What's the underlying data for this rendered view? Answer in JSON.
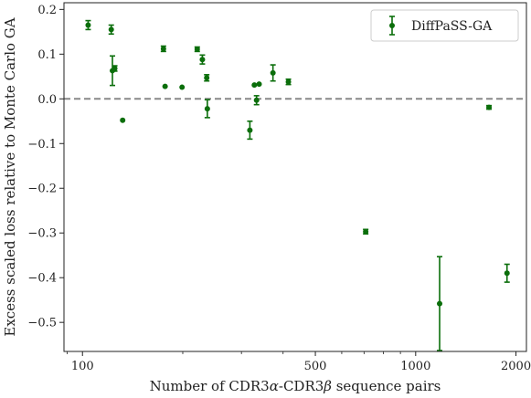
{
  "chart_data": {
    "type": "scatter",
    "xlabel_parts": [
      "Number of CDR3",
      "α",
      "-CDR3",
      "β",
      " sequence pairs"
    ],
    "ylabel": "Excess scaled loss relative to Monte Carlo GA",
    "xscale": "log",
    "xlim": [
      88,
      2150
    ],
    "ylim": [
      -0.565,
      0.215
    ],
    "xticks": [
      100,
      500,
      1000,
      2000
    ],
    "xtick_labels": [
      "100",
      "500",
      "1000",
      "2000"
    ],
    "yticks": [
      0.2,
      0.1,
      0.0,
      -0.1,
      -0.2,
      -0.3,
      -0.4,
      -0.5
    ],
    "ytick_labels": [
      "0.2",
      "0.1",
      "0.0",
      "−0.1",
      "−0.2",
      "−0.3",
      "−0.4",
      "−0.5"
    ],
    "reference_line": {
      "y": 0.0,
      "style": "dashed",
      "color": "#888888"
    },
    "legend": {
      "position": "top-right",
      "entries": [
        "DiffPaSS-GA"
      ]
    },
    "series": [
      {
        "name": "DiffPaSS-GA",
        "color": "#0b6e0b",
        "points": [
          {
            "x": 104,
            "y": 0.165,
            "err": 0.01
          },
          {
            "x": 122,
            "y": 0.155,
            "err": 0.01
          },
          {
            "x": 123,
            "y": 0.063,
            "err": 0.033
          },
          {
            "x": 125,
            "y": 0.068,
            "err": 0.006
          },
          {
            "x": 132,
            "y": -0.048,
            "err": 0.0
          },
          {
            "x": 175,
            "y": 0.112,
            "err": 0.006
          },
          {
            "x": 177,
            "y": 0.028,
            "err": 0.0
          },
          {
            "x": 199,
            "y": 0.026,
            "err": 0.0
          },
          {
            "x": 221,
            "y": 0.111,
            "err": 0.005
          },
          {
            "x": 229,
            "y": 0.088,
            "err": 0.01
          },
          {
            "x": 236,
            "y": 0.047,
            "err": 0.007
          },
          {
            "x": 237,
            "y": -0.022,
            "err": 0.02
          },
          {
            "x": 318,
            "y": -0.07,
            "err": 0.02
          },
          {
            "x": 328,
            "y": 0.031,
            "err": 0.0
          },
          {
            "x": 333,
            "y": -0.003,
            "err": 0.01
          },
          {
            "x": 339,
            "y": 0.033,
            "err": 0.0
          },
          {
            "x": 373,
            "y": 0.058,
            "err": 0.018
          },
          {
            "x": 415,
            "y": 0.038,
            "err": 0.006
          },
          {
            "x": 708,
            "y": -0.297,
            "err": 0.005
          },
          {
            "x": 1180,
            "y": -0.458,
            "err": 0.105
          },
          {
            "x": 1660,
            "y": -0.019,
            "err": 0.004
          },
          {
            "x": 1880,
            "y": -0.39,
            "err": 0.02
          }
        ]
      }
    ]
  }
}
